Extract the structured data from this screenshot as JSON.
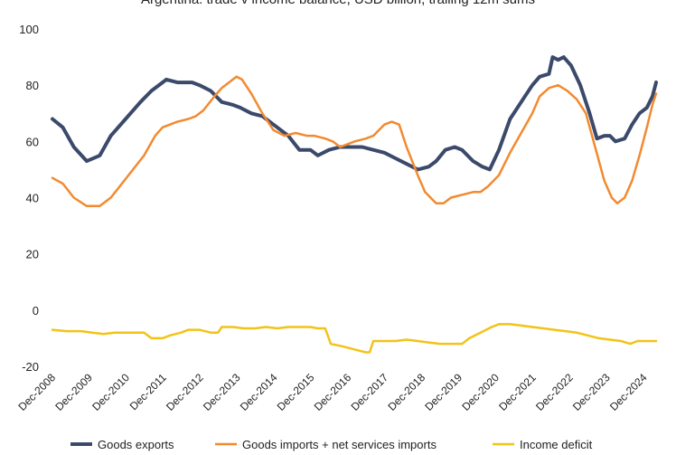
{
  "chart_data": {
    "type": "line",
    "title": "Argentina: trade v income balance, USD billion, trailing 12m sums",
    "xlabel": "",
    "ylabel": "",
    "ylim": [
      -20,
      100
    ],
    "y_ticks": [
      "100",
      "80",
      "60",
      "40",
      "20",
      "0",
      "-20"
    ],
    "x_ticks": [
      "Dec-2008",
      "Dec-2009",
      "Dec-2010",
      "Dec-2011",
      "Dec-2012",
      "Dec-2013",
      "Dec-2014",
      "Dec-2015",
      "Dec-2016",
      "Dec-2017",
      "Dec-2018",
      "Dec-2019",
      "Dec-2020",
      "Dec-2021",
      "Dec-2022",
      "Dec-2023",
      "Dec-2024"
    ],
    "x_range": [
      2008.92,
      2025.25
    ],
    "grid": false,
    "legend_position": "bottom",
    "series": [
      {
        "name": "Goods exports",
        "color": "#3b4a6b",
        "points": [
          [
            2008.92,
            68
          ],
          [
            2009.2,
            65
          ],
          [
            2009.5,
            58
          ],
          [
            2009.85,
            53
          ],
          [
            2010.2,
            55
          ],
          [
            2010.5,
            62
          ],
          [
            2010.9,
            68
          ],
          [
            2011.3,
            74
          ],
          [
            2011.6,
            78
          ],
          [
            2011.9,
            81
          ],
          [
            2012.0,
            82
          ],
          [
            2012.3,
            81
          ],
          [
            2012.7,
            81
          ],
          [
            2012.9,
            80
          ],
          [
            2013.2,
            78
          ],
          [
            2013.5,
            74
          ],
          [
            2013.8,
            73
          ],
          [
            2014.0,
            72
          ],
          [
            2014.3,
            70
          ],
          [
            2014.6,
            69
          ],
          [
            2014.9,
            66
          ],
          [
            2015.3,
            62
          ],
          [
            2015.6,
            57
          ],
          [
            2015.9,
            57
          ],
          [
            2016.1,
            55
          ],
          [
            2016.4,
            57
          ],
          [
            2016.7,
            58
          ],
          [
            2017.0,
            58
          ],
          [
            2017.3,
            58
          ],
          [
            2017.6,
            57
          ],
          [
            2017.9,
            56
          ],
          [
            2018.2,
            54
          ],
          [
            2018.5,
            52
          ],
          [
            2018.8,
            50
          ],
          [
            2019.1,
            51
          ],
          [
            2019.3,
            53
          ],
          [
            2019.55,
            57
          ],
          [
            2019.8,
            58
          ],
          [
            2020.0,
            57
          ],
          [
            2020.3,
            53
          ],
          [
            2020.55,
            51
          ],
          [
            2020.75,
            50
          ],
          [
            2021.0,
            57
          ],
          [
            2021.3,
            68
          ],
          [
            2021.6,
            74
          ],
          [
            2021.9,
            80
          ],
          [
            2022.1,
            83
          ],
          [
            2022.35,
            84
          ],
          [
            2022.45,
            90
          ],
          [
            2022.6,
            89
          ],
          [
            2022.75,
            90
          ],
          [
            2022.95,
            87
          ],
          [
            2023.2,
            80
          ],
          [
            2023.45,
            70
          ],
          [
            2023.65,
            61
          ],
          [
            2023.85,
            62
          ],
          [
            2024.0,
            62
          ],
          [
            2024.15,
            60
          ],
          [
            2024.4,
            61
          ],
          [
            2024.6,
            66
          ],
          [
            2024.8,
            70
          ],
          [
            2025.0,
            72
          ],
          [
            2025.15,
            76
          ],
          [
            2025.25,
            81
          ]
        ]
      },
      {
        "name": "Goods imports + net services imports",
        "color": "#f28a30",
        "points": [
          [
            2008.92,
            47
          ],
          [
            2009.2,
            45
          ],
          [
            2009.5,
            40
          ],
          [
            2009.85,
            37
          ],
          [
            2010.2,
            37
          ],
          [
            2010.5,
            40
          ],
          [
            2010.8,
            45
          ],
          [
            2011.1,
            50
          ],
          [
            2011.4,
            55
          ],
          [
            2011.7,
            62
          ],
          [
            2011.9,
            65
          ],
          [
            2012.1,
            66
          ],
          [
            2012.3,
            67
          ],
          [
            2012.6,
            68
          ],
          [
            2012.8,
            69
          ],
          [
            2013.0,
            71
          ],
          [
            2013.3,
            76
          ],
          [
            2013.5,
            79
          ],
          [
            2013.8,
            82
          ],
          [
            2013.9,
            83
          ],
          [
            2014.05,
            82
          ],
          [
            2014.3,
            77
          ],
          [
            2014.6,
            70
          ],
          [
            2014.9,
            64
          ],
          [
            2015.2,
            62
          ],
          [
            2015.5,
            63
          ],
          [
            2015.8,
            62
          ],
          [
            2016.0,
            62
          ],
          [
            2016.3,
            61
          ],
          [
            2016.5,
            60
          ],
          [
            2016.7,
            58
          ],
          [
            2016.9,
            59
          ],
          [
            2017.1,
            60
          ],
          [
            2017.4,
            61
          ],
          [
            2017.6,
            62
          ],
          [
            2017.9,
            66
          ],
          [
            2018.1,
            67
          ],
          [
            2018.3,
            66
          ],
          [
            2018.5,
            58
          ],
          [
            2018.8,
            48
          ],
          [
            2019.0,
            42
          ],
          [
            2019.3,
            38
          ],
          [
            2019.5,
            38
          ],
          [
            2019.7,
            40
          ],
          [
            2020.0,
            41
          ],
          [
            2020.3,
            42
          ],
          [
            2020.5,
            42
          ],
          [
            2020.7,
            44
          ],
          [
            2021.0,
            48
          ],
          [
            2021.3,
            56
          ],
          [
            2021.6,
            63
          ],
          [
            2021.9,
            70
          ],
          [
            2022.1,
            76
          ],
          [
            2022.35,
            79
          ],
          [
            2022.6,
            80
          ],
          [
            2022.85,
            78
          ],
          [
            2023.1,
            75
          ],
          [
            2023.35,
            70
          ],
          [
            2023.6,
            58
          ],
          [
            2023.85,
            46
          ],
          [
            2024.05,
            40
          ],
          [
            2024.2,
            38
          ],
          [
            2024.4,
            40
          ],
          [
            2024.6,
            46
          ],
          [
            2024.8,
            55
          ],
          [
            2025.0,
            65
          ],
          [
            2025.15,
            73
          ],
          [
            2025.25,
            77
          ]
        ]
      },
      {
        "name": "Income deficit",
        "color": "#f2c318",
        "points": [
          [
            2008.92,
            -7
          ],
          [
            2009.3,
            -7.5
          ],
          [
            2009.7,
            -7.5
          ],
          [
            2010.0,
            -8
          ],
          [
            2010.3,
            -8.5
          ],
          [
            2010.6,
            -8
          ],
          [
            2010.9,
            -8
          ],
          [
            2011.2,
            -8
          ],
          [
            2011.4,
            -8
          ],
          [
            2011.6,
            -10
          ],
          [
            2011.9,
            -10
          ],
          [
            2012.1,
            -9
          ],
          [
            2012.4,
            -8
          ],
          [
            2012.6,
            -7
          ],
          [
            2012.9,
            -7
          ],
          [
            2013.2,
            -8
          ],
          [
            2013.4,
            -8
          ],
          [
            2013.5,
            -6
          ],
          [
            2013.8,
            -6
          ],
          [
            2014.1,
            -6.5
          ],
          [
            2014.4,
            -6.5
          ],
          [
            2014.7,
            -6
          ],
          [
            2015.0,
            -6.5
          ],
          [
            2015.3,
            -6
          ],
          [
            2015.6,
            -6
          ],
          [
            2015.9,
            -6
          ],
          [
            2016.1,
            -6.5
          ],
          [
            2016.3,
            -6.5
          ],
          [
            2016.45,
            -12
          ],
          [
            2016.8,
            -13
          ],
          [
            2017.1,
            -14
          ],
          [
            2017.4,
            -15
          ],
          [
            2017.5,
            -15
          ],
          [
            2017.6,
            -11
          ],
          [
            2017.9,
            -11
          ],
          [
            2018.2,
            -11
          ],
          [
            2018.5,
            -10.5
          ],
          [
            2018.8,
            -11
          ],
          [
            2019.1,
            -11.5
          ],
          [
            2019.4,
            -12
          ],
          [
            2019.7,
            -12
          ],
          [
            2020.0,
            -12
          ],
          [
            2020.2,
            -10
          ],
          [
            2020.5,
            -8
          ],
          [
            2020.8,
            -6
          ],
          [
            2021.0,
            -5
          ],
          [
            2021.3,
            -5
          ],
          [
            2021.6,
            -5.5
          ],
          [
            2021.9,
            -6
          ],
          [
            2022.2,
            -6.5
          ],
          [
            2022.5,
            -7
          ],
          [
            2022.8,
            -7.5
          ],
          [
            2023.1,
            -8
          ],
          [
            2023.4,
            -9
          ],
          [
            2023.7,
            -10
          ],
          [
            2024.0,
            -10.5
          ],
          [
            2024.3,
            -11
          ],
          [
            2024.55,
            -12
          ],
          [
            2024.75,
            -11
          ],
          [
            2025.0,
            -11
          ],
          [
            2025.25,
            -11
          ]
        ]
      }
    ]
  }
}
